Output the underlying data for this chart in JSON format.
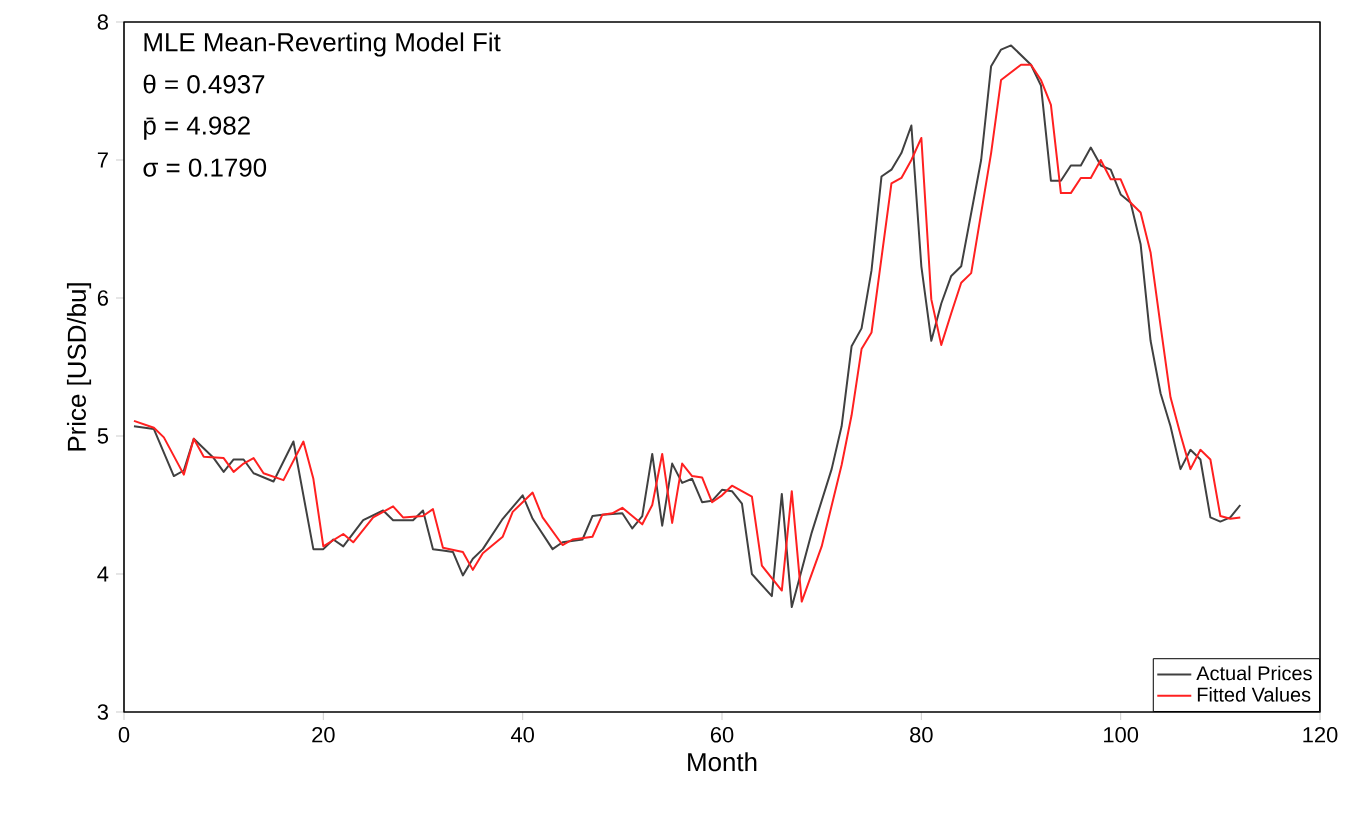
{
  "chart_data": {
    "type": "line",
    "xlabel": "Month",
    "ylabel": "Price [USD/bu]",
    "annotations": [
      "MLE Mean-Reverting Model Fit",
      "θ = 0.4937",
      "p̄ = 4.982",
      "σ = 0.1790"
    ],
    "xlim": [
      0,
      120
    ],
    "xticks": [
      0,
      20,
      40,
      60,
      80,
      100,
      120
    ],
    "ylim": [
      3,
      8
    ],
    "yticks": [
      3,
      4,
      5,
      6,
      7,
      8
    ],
    "legend": "bottom right",
    "grid": false,
    "marker": "none",
    "line_style": "solid",
    "series": [
      {
        "name": "Actual Prices",
        "color": "#404040",
        "x": [
          1,
          3,
          5,
          6,
          7,
          9,
          10,
          11,
          12,
          13,
          15,
          17,
          19,
          20,
          21,
          22,
          24,
          26,
          27,
          29,
          30,
          31,
          32,
          33,
          34,
          35,
          36,
          38,
          40,
          41,
          43,
          44,
          46,
          47,
          48,
          50,
          51,
          52,
          53,
          54,
          55,
          56,
          57,
          58,
          59,
          60,
          61,
          62,
          63,
          65,
          66,
          67,
          69,
          71,
          72,
          73,
          74,
          75,
          76,
          77,
          78,
          79,
          80,
          81,
          82,
          83,
          84,
          86,
          87,
          88,
          89,
          91,
          92,
          93,
          94,
          95,
          96,
          97,
          98,
          99,
          100,
          101,
          102,
          103,
          104,
          105,
          106,
          107,
          108,
          109,
          110,
          111,
          112
        ],
        "values": [
          5.07,
          5.05,
          4.71,
          4.75,
          4.98,
          4.84,
          4.74,
          4.83,
          4.83,
          4.73,
          4.67,
          4.96,
          4.18,
          4.18,
          4.25,
          4.2,
          4.39,
          4.46,
          4.39,
          4.39,
          4.46,
          4.18,
          4.17,
          4.16,
          3.99,
          4.11,
          4.18,
          4.4,
          4.57,
          4.4,
          4.18,
          4.23,
          4.25,
          4.42,
          4.43,
          4.44,
          4.33,
          4.42,
          4.87,
          4.35,
          4.8,
          4.66,
          4.69,
          4.52,
          4.53,
          4.61,
          4.6,
          4.51,
          4.0,
          3.84,
          4.58,
          3.76,
          4.3,
          4.76,
          5.07,
          5.65,
          5.78,
          6.2,
          6.88,
          6.93,
          7.05,
          7.25,
          6.23,
          5.69,
          5.96,
          6.16,
          6.23,
          7.0,
          7.68,
          7.8,
          7.83,
          7.69,
          7.54,
          6.85,
          6.85,
          6.96,
          6.96,
          7.09,
          6.96,
          6.93,
          6.75,
          6.69,
          6.39,
          5.69,
          5.31,
          5.07,
          4.76,
          4.9,
          4.83,
          4.41,
          4.38,
          4.41,
          4.5
        ]
      },
      {
        "name": "Fitted Values",
        "color": "#ff2020",
        "x": [
          1,
          3,
          4,
          6,
          7,
          8,
          10,
          11,
          12,
          13,
          14,
          16,
          18,
          19,
          20,
          22,
          23,
          25,
          27,
          28,
          30,
          31,
          32,
          34,
          35,
          36,
          38,
          39,
          41,
          42,
          44,
          45,
          47,
          48,
          49,
          50,
          52,
          53,
          54,
          55,
          56,
          57,
          58,
          59,
          60,
          61,
          63,
          64,
          66,
          67,
          68,
          70,
          72,
          73,
          74,
          75,
          77,
          78,
          79,
          80,
          81,
          82,
          83,
          84,
          85,
          87,
          88,
          90,
          91,
          92,
          93,
          94,
          95,
          96,
          97,
          98,
          99,
          100,
          101,
          102,
          103,
          104,
          105,
          106,
          107,
          108,
          109,
          110,
          111,
          112
        ],
        "values": [
          5.11,
          5.06,
          4.99,
          4.72,
          4.98,
          4.85,
          4.84,
          4.74,
          4.8,
          4.84,
          4.73,
          4.68,
          4.96,
          4.69,
          4.2,
          4.29,
          4.23,
          4.41,
          4.49,
          4.41,
          4.42,
          4.47,
          4.19,
          4.16,
          4.03,
          4.15,
          4.27,
          4.45,
          4.59,
          4.41,
          4.21,
          4.25,
          4.27,
          4.43,
          4.44,
          4.48,
          4.36,
          4.5,
          4.87,
          4.37,
          4.8,
          4.71,
          4.7,
          4.52,
          4.57,
          4.64,
          4.56,
          4.06,
          3.88,
          4.6,
          3.8,
          4.2,
          4.79,
          5.15,
          5.63,
          5.75,
          6.83,
          6.87,
          7.0,
          7.16,
          5.99,
          5.66,
          5.89,
          6.11,
          6.18,
          7.05,
          7.58,
          7.69,
          7.69,
          7.58,
          7.4,
          6.76,
          6.76,
          6.87,
          6.87,
          7.0,
          6.86,
          6.86,
          6.69,
          6.62,
          6.33,
          5.8,
          5.28,
          5.01,
          4.76,
          4.9,
          4.83,
          4.42,
          4.4,
          4.41
        ]
      }
    ]
  }
}
